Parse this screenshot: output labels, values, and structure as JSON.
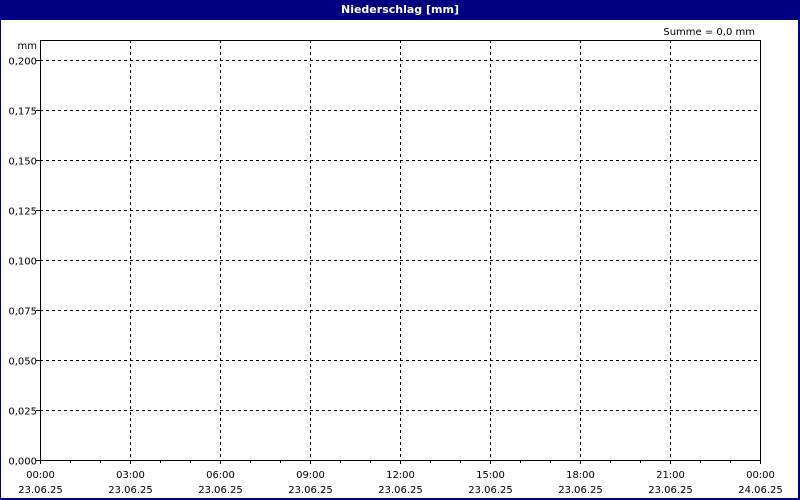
{
  "title": "Niederschlag [mm]",
  "summary": "Summe = 0,0 mm",
  "chart_data": {
    "type": "bar",
    "title": "Niederschlag [mm]",
    "ylabel": "mm",
    "ylim": [
      0,
      0.2
    ],
    "yticks": [
      "0,000",
      "0,025",
      "0,050",
      "0,075",
      "0,100",
      "0,125",
      "0,150",
      "0,175",
      "0,200"
    ],
    "xticks": [
      {
        "time": "00:00",
        "date": "23.06.25"
      },
      {
        "time": "03:00",
        "date": "23.06.25"
      },
      {
        "time": "06:00",
        "date": "23.06.25"
      },
      {
        "time": "09:00",
        "date": "23.06.25"
      },
      {
        "time": "12:00",
        "date": "23.06.25"
      },
      {
        "time": "15:00",
        "date": "23.06.25"
      },
      {
        "time": "18:00",
        "date": "23.06.25"
      },
      {
        "time": "21:00",
        "date": "23.06.25"
      },
      {
        "time": "00:00",
        "date": "24.06.25"
      }
    ],
    "xlim": [
      "23.06.25 00:00",
      "24.06.25 00:00"
    ],
    "series": [],
    "grid": true,
    "colors": {
      "titlebar": "#000080",
      "grid": "#000000"
    }
  }
}
